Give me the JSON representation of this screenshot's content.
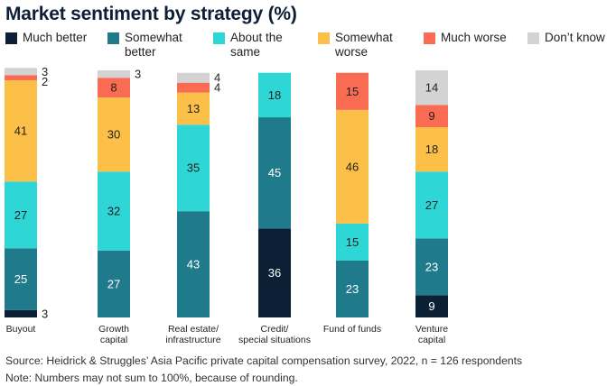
{
  "title": "Market sentiment by strategy (%)",
  "legend": [
    {
      "label": "Much better",
      "color": "#0b1f35"
    },
    {
      "label": "Somewhat better",
      "color": "#1f7a8c"
    },
    {
      "label": "About the same",
      "color": "#2ed6d6"
    },
    {
      "label": "Somewhat worse",
      "color": "#fcbf47"
    },
    {
      "label": "Much worse",
      "color": "#f96b53"
    },
    {
      "label": "Don’t know",
      "color": "#d3d3d3"
    }
  ],
  "chart_data": {
    "type": "bar",
    "stacked": true,
    "title": "Market sentiment by strategy (%)",
    "categories": [
      "Buyout",
      "Growth capital",
      "Real estate/ infrastructure",
      "Credit/ special situations",
      "Fund of funds",
      "Venture capital"
    ],
    "series": [
      {
        "name": "Much better",
        "values": [
          3,
          0,
          0,
          36,
          0,
          9
        ]
      },
      {
        "name": "Somewhat better",
        "values": [
          25,
          27,
          43,
          45,
          23,
          23
        ]
      },
      {
        "name": "About the same",
        "values": [
          27,
          32,
          35,
          18,
          15,
          27
        ]
      },
      {
        "name": "Somewhat worse",
        "values": [
          41,
          30,
          13,
          0,
          46,
          18
        ]
      },
      {
        "name": "Much worse",
        "values": [
          2,
          8,
          4,
          0,
          15,
          9
        ]
      },
      {
        "name": "Don’t know",
        "values": [
          3,
          3,
          4,
          0,
          0,
          14
        ]
      }
    ],
    "ylim": [
      0,
      100
    ]
  },
  "source": "Source: Heidrick & Struggles’ Asia Pacific private capital compensation survey, 2022, n = 126 respondents",
  "footnote": "Note: Numbers may not sum to 100%, because of rounding."
}
